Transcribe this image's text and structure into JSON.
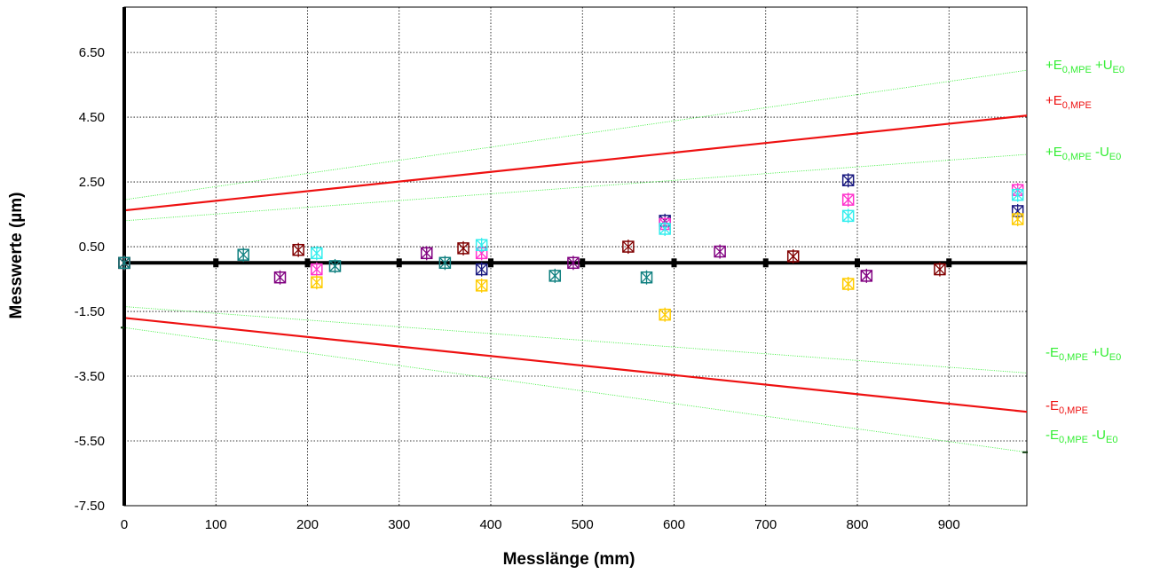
{
  "chart_data": {
    "type": "scatter",
    "xlabel": "Messlänge (mm)",
    "ylabel": "Messwerte (µm)",
    "xlim": [
      0,
      985
    ],
    "ylim": [
      -7.5,
      7.9
    ],
    "xticks": [
      0,
      100,
      200,
      300,
      400,
      500,
      600,
      700,
      800,
      900
    ],
    "xtick_labels": [
      "0",
      "100",
      "200",
      "300",
      "400",
      "500",
      "600",
      "700",
      "800",
      "900"
    ],
    "yticks": [
      6.5,
      4.5,
      2.5,
      0.5,
      -1.5,
      -3.5,
      -5.5,
      -7.5
    ],
    "ytick_labels": [
      "6.50",
      "4.50",
      "2.50",
      "0.50",
      "-1.50",
      "-3.50",
      "-5.50",
      "-7.50"
    ],
    "grid": true,
    "limit_lines": [
      {
        "name": "+E0,MPE +UE0",
        "color": "#33ee33",
        "style": "dotted",
        "x": [
          0,
          985
        ],
        "y": [
          1.95,
          5.95
        ],
        "label": {
          "base": "+E",
          "sub1": "0,MPE",
          "mid": " +U",
          "sub2": "E0"
        }
      },
      {
        "name": "+E0,MPE",
        "color": "#ee1111",
        "style": "solid",
        "x": [
          0,
          985
        ],
        "y": [
          1.62,
          4.55
        ],
        "label": {
          "base": "+E",
          "sub1": "0,MPE",
          "mid": "",
          "sub2": ""
        }
      },
      {
        "name": "+E0,MPE -UE0",
        "color": "#33ee33",
        "style": "dotted",
        "x": [
          0,
          985
        ],
        "y": [
          1.3,
          3.35
        ],
        "label": {
          "base": "+E",
          "sub1": "0,MPE",
          "mid": " -U",
          "sub2": "E0"
        }
      },
      {
        "name": "-E0,MPE +UE0",
        "color": "#33ee33",
        "style": "dotted",
        "x": [
          0,
          985
        ],
        "y": [
          -1.35,
          -3.4
        ],
        "label": {
          "base": "-E",
          "sub1": "0,MPE",
          "mid": " +U",
          "sub2": "E0"
        }
      },
      {
        "name": "-E0,MPE",
        "color": "#ee1111",
        "style": "solid",
        "x": [
          0,
          985
        ],
        "y": [
          -1.7,
          -4.6
        ],
        "label": {
          "base": "-E",
          "sub1": "0,MPE",
          "mid": "",
          "sub2": ""
        }
      },
      {
        "name": "-E0,MPE -UE0",
        "color": "#33ee33",
        "style": "dotted",
        "x": [
          0,
          985
        ],
        "y": [
          -2.0,
          -5.85
        ],
        "label": {
          "base": "-E",
          "sub1": "0,MPE",
          "mid": " -U",
          "sub2": "E0"
        }
      }
    ],
    "series": [
      {
        "color": "#1a1a80",
        "points": [
          [
            0,
            0
          ],
          [
            390,
            -0.2
          ],
          [
            590,
            1.3
          ],
          [
            790,
            2.55
          ],
          [
            975,
            1.6
          ]
        ]
      },
      {
        "color": "#ff33cc",
        "points": [
          [
            0,
            0
          ],
          [
            210,
            -0.2
          ],
          [
            390,
            0.3
          ],
          [
            590,
            1.2
          ],
          [
            790,
            1.95
          ],
          [
            975,
            2.25
          ]
        ]
      },
      {
        "color": "#ffcc00",
        "points": [
          [
            0,
            0
          ],
          [
            210,
            -0.6
          ],
          [
            390,
            -0.7
          ],
          [
            590,
            -1.6
          ],
          [
            790,
            -0.65
          ],
          [
            975,
            1.35
          ]
        ]
      },
      {
        "color": "#33eeee",
        "points": [
          [
            0,
            0
          ],
          [
            210,
            0.3
          ],
          [
            390,
            0.55
          ],
          [
            590,
            1.05
          ],
          [
            790,
            1.45
          ],
          [
            975,
            2.1
          ]
        ]
      },
      {
        "color": "#800080",
        "points": [
          [
            0,
            0
          ],
          [
            170,
            -0.45
          ],
          [
            330,
            0.3
          ],
          [
            490,
            0
          ],
          [
            650,
            0.35
          ],
          [
            810,
            -0.4
          ]
        ]
      },
      {
        "color": "#800000",
        "points": [
          [
            0,
            0
          ],
          [
            190,
            0.4
          ],
          [
            370,
            0.45
          ],
          [
            550,
            0.5
          ],
          [
            730,
            0.2
          ],
          [
            890,
            -0.2
          ]
        ]
      },
      {
        "color": "#108080",
        "points": [
          [
            0,
            0
          ],
          [
            130,
            0.25
          ],
          [
            230,
            -0.1
          ],
          [
            350,
            0
          ],
          [
            470,
            -0.4
          ],
          [
            570,
            -0.45
          ]
        ]
      }
    ]
  }
}
